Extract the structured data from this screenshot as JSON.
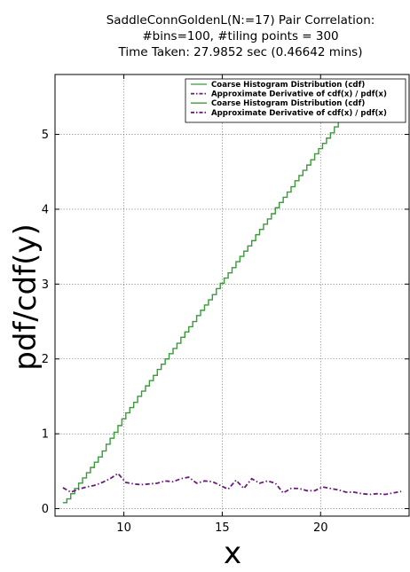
{
  "chart_data": {
    "type": "line",
    "title_lines": [
      "SaddleConnGoldenL(N:=17) Pair Correlation:",
      "#bins=100, #tiling points = 300",
      "Time Taken: 27.9852 sec (0.46642 mins)"
    ],
    "xlabel": "x",
    "ylabel": "pdf/cdf(y)",
    "xlim": [
      6.5,
      24.5
    ],
    "ylim": [
      -0.1,
      5.8
    ],
    "xticks": [
      "10",
      "15",
      "20"
    ],
    "xtick_values": [
      10,
      15,
      20
    ],
    "yticks": [
      "0",
      "1",
      "2",
      "3",
      "4",
      "5"
    ],
    "ytick_values": [
      0,
      1,
      2,
      3,
      4,
      5
    ],
    "grid": true,
    "legend_position": "top-right",
    "legend": [
      {
        "label": "Coarse Histogram Distribution (cdf)",
        "style": "solid",
        "color": "#3a9a3a"
      },
      {
        "label": "Approximate Derivative of cdf(x) / pdf(x)",
        "style": "dashdot",
        "color": "#6a1a7a"
      },
      {
        "label": "Coarse Histogram Distribution (cdf)",
        "style": "solid",
        "color": "#3a9a3a"
      },
      {
        "label": "Approximate Derivative of cdf(x) / pdf(x)",
        "style": "dashdot",
        "color": "#6a1a7a"
      }
    ],
    "series": [
      {
        "style": "step",
        "color": "#3a9a3a",
        "x": [
          6.9,
          7.1,
          7.3,
          7.5,
          7.7,
          7.9,
          8.1,
          8.3,
          8.5,
          8.7,
          8.9,
          9.1,
          9.3,
          9.5,
          9.7,
          9.9,
          10.1,
          10.3,
          10.5,
          10.7,
          10.9,
          11.1,
          11.3,
          11.5,
          11.7,
          11.9,
          12.1,
          12.3,
          12.5,
          12.7,
          12.9,
          13.1,
          13.3,
          13.5,
          13.7,
          13.9,
          14.1,
          14.3,
          14.5,
          14.7,
          14.9,
          15.1,
          15.3,
          15.5,
          15.7,
          15.9,
          16.1,
          16.3,
          16.5,
          16.7,
          16.9,
          17.1,
          17.3,
          17.5,
          17.7,
          17.9,
          18.1,
          18.3,
          18.5,
          18.7,
          18.9,
          19.1,
          19.3,
          19.5,
          19.7,
          19.9,
          20.1,
          20.3,
          20.5,
          20.7,
          20.9,
          21.1,
          21.3,
          21.5,
          21.7,
          21.9,
          22.1
        ],
        "y": [
          0.08,
          0.13,
          0.2,
          0.27,
          0.34,
          0.41,
          0.48,
          0.55,
          0.62,
          0.69,
          0.77,
          0.86,
          0.94,
          1.02,
          1.11,
          1.2,
          1.28,
          1.35,
          1.42,
          1.5,
          1.57,
          1.64,
          1.71,
          1.78,
          1.86,
          1.93,
          2.0,
          2.07,
          2.14,
          2.21,
          2.29,
          2.36,
          2.43,
          2.5,
          2.58,
          2.65,
          2.72,
          2.79,
          2.86,
          2.94,
          3.01,
          3.08,
          3.15,
          3.22,
          3.3,
          3.37,
          3.44,
          3.51,
          3.58,
          3.66,
          3.73,
          3.8,
          3.87,
          3.94,
          4.02,
          4.09,
          4.16,
          4.23,
          4.3,
          4.38,
          4.45,
          4.52,
          4.59,
          4.66,
          4.74,
          4.81,
          4.88,
          4.95,
          5.02,
          5.1,
          5.17,
          5.24,
          5.31,
          5.38,
          5.46,
          5.53,
          5.6
        ]
      },
      {
        "style": "dashdot",
        "color": "#6a1a7a",
        "x": [
          6.9,
          7.3,
          7.7,
          8.1,
          8.5,
          8.9,
          9.3,
          9.7,
          10.1,
          10.5,
          10.9,
          11.3,
          11.7,
          12.1,
          12.5,
          12.9,
          13.3,
          13.7,
          14.1,
          14.5,
          14.9,
          15.3,
          15.7,
          16.1,
          16.5,
          16.9,
          17.3,
          17.7,
          18.1,
          18.5,
          18.9,
          19.3,
          19.7,
          20.1,
          20.5,
          20.9,
          21.3,
          21.7,
          22.1,
          22.5,
          22.9,
          23.3,
          23.7,
          24.1
        ],
        "y": [
          0.28,
          0.22,
          0.26,
          0.29,
          0.31,
          0.35,
          0.4,
          0.47,
          0.35,
          0.33,
          0.32,
          0.33,
          0.34,
          0.37,
          0.36,
          0.4,
          0.42,
          0.34,
          0.37,
          0.36,
          0.31,
          0.26,
          0.38,
          0.27,
          0.4,
          0.34,
          0.37,
          0.34,
          0.21,
          0.27,
          0.27,
          0.24,
          0.24,
          0.29,
          0.27,
          0.25,
          0.22,
          0.22,
          0.2,
          0.19,
          0.2,
          0.19,
          0.21,
          0.23
        ]
      }
    ]
  }
}
